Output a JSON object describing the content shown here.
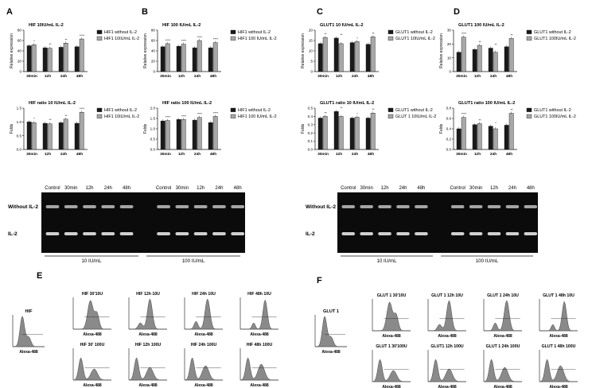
{
  "panel_labels": [
    "A",
    "B",
    "C",
    "D",
    "E",
    "F"
  ],
  "chart_data": [
    {
      "type": "bar",
      "title": "HIF 10IU/mL IL-2",
      "xlabel": "",
      "ylabel": "Relative expression",
      "categories": [
        "30min",
        "12h",
        "24h",
        "48h"
      ],
      "ylim": [
        0,
        80
      ],
      "yticks": [
        "0",
        "20",
        "40",
        "60",
        "80"
      ],
      "series": [
        {
          "name": "HIF1 without IL-2",
          "values": [
            50,
            46,
            47,
            48
          ]
        },
        {
          "name": "HIF1 10IU/mL IL-2",
          "values": [
            52,
            45,
            55,
            63
          ]
        }
      ],
      "annotations": [
        "*",
        "**",
        "**",
        "****"
      ],
      "legend": "right"
    },
    {
      "type": "bar",
      "title": "HIF 100 IU/mL IL-2",
      "xlabel": "",
      "ylabel": "Relative expression",
      "categories": [
        "30min",
        "12h",
        "24h",
        "48h"
      ],
      "ylim": [
        0,
        80
      ],
      "yticks": [
        "0",
        "20",
        "40",
        "60",
        "80"
      ],
      "series": [
        {
          "name": "HIF1 without IL-2",
          "values": [
            48,
            49,
            46,
            46
          ]
        },
        {
          "name": "HIF1 100 IU/mL IL-2",
          "values": [
            54,
            53,
            60,
            56
          ]
        }
      ],
      "annotations": [
        "****",
        "****",
        "****",
        "****"
      ],
      "legend": "right"
    },
    {
      "type": "bar",
      "title": "GLUT1 10 IU/mL IL-2",
      "xlabel": "",
      "ylabel": "Relative expression",
      "categories": [
        "30min",
        "12h",
        "24h",
        "48h"
      ],
      "ylim": [
        0,
        20
      ],
      "yticks": [
        "0",
        "5",
        "10",
        "15",
        "20"
      ],
      "series": [
        {
          "name": "GLUT1 without IL-2",
          "values": [
            13.5,
            16.2,
            14.0,
            13.2
          ]
        },
        {
          "name": "GLUT1 10IU/mL IL-2",
          "values": [
            16.5,
            13.5,
            14.5,
            16.8
          ]
        }
      ],
      "annotations": [
        "**",
        "**",
        "*",
        "**"
      ],
      "legend": "right"
    },
    {
      "type": "bar",
      "title": "GLUT1 100 IU/mL IL-2",
      "xlabel": "",
      "ylabel": "Relative expression",
      "categories": [
        "30min",
        "12h",
        "24h",
        "48h"
      ],
      "ylim": [
        0,
        30
      ],
      "yticks": [
        "0",
        "10",
        "20",
        "30"
      ],
      "series": [
        {
          "name": "GLUT1 without IL-2",
          "values": [
            14,
            16,
            17,
            18
          ]
        },
        {
          "name": "GLUT1 100IU/mL IL-2",
          "values": [
            25,
            19,
            14,
            24
          ]
        }
      ],
      "annotations": [
        "****",
        "**",
        "**",
        "**"
      ],
      "legend": "right"
    },
    {
      "type": "bar",
      "title": "HIF ratio 10 IU/mL IL-2",
      "xlabel": "",
      "ylabel": "Folds",
      "categories": [
        "30min",
        "12h",
        "24h",
        "48h"
      ],
      "ylim": [
        0,
        1.5
      ],
      "yticks": [
        "0.0",
        "0.5",
        "1.0",
        "1.5"
      ],
      "series": [
        {
          "name": "HIF1 without IL-2",
          "values": [
            1.0,
            0.95,
            0.97,
            0.95
          ]
        },
        {
          "name": "HIF1 10IU/mL IL-2",
          "values": [
            0.97,
            0.93,
            1.1,
            1.35
          ]
        }
      ],
      "annotations": [
        "*",
        "**",
        "**",
        "****"
      ],
      "legend": "right"
    },
    {
      "type": "bar",
      "title": "HIF ratio 100 IU/mL IL-2",
      "xlabel": "",
      "ylabel": "Folds",
      "categories": [
        "30min",
        "12h",
        "24h",
        "48h"
      ],
      "ylim": [
        0,
        2.0
      ],
      "yticks": [
        "0.0",
        "0.5",
        "1.0",
        "1.5",
        "2.0"
      ],
      "series": [
        {
          "name": "HIF1 without IL-2",
          "values": [
            1.38,
            1.45,
            1.42,
            1.3
          ]
        },
        {
          "name": "HIF1 100 IU/mL IL-2",
          "values": [
            1.4,
            1.45,
            1.55,
            1.6
          ]
        }
      ],
      "annotations": [
        "****",
        "****",
        "****",
        "****"
      ],
      "legend": "right"
    },
    {
      "type": "bar",
      "title": "GLUT1 ratio 10 IU/mL IL-2",
      "xlabel": "",
      "ylabel": "Folds",
      "categories": [
        "30min",
        "12h",
        "24h",
        "48h"
      ],
      "ylim": [
        0.0,
        0.5
      ],
      "yticks": [
        "0.0",
        "0.1",
        "0.2",
        "0.3",
        "0.4",
        "0.5"
      ],
      "series": [
        {
          "name": "GLUT1 without IL-2",
          "values": [
            0.38,
            0.46,
            0.38,
            0.38
          ]
        },
        {
          "name": "GLUT 1 10IU/mL IL-2",
          "values": [
            0.4,
            0.4,
            0.39,
            0.44
          ]
        }
      ],
      "annotations": [
        "**",
        "**",
        "*",
        "**"
      ],
      "legend": "right"
    },
    {
      "type": "bar",
      "title": "GLUT1 ratio 100 IU/mL IL-2",
      "xlabel": "",
      "ylabel": "Folds",
      "categories": [
        "30min",
        "12h",
        "24h",
        "48h"
      ],
      "ylim": [
        0.0,
        0.8
      ],
      "yticks": [
        "0.0",
        "0.2",
        "0.4",
        "0.6",
        "0.8"
      ],
      "series": [
        {
          "name": "GLUT1 without IL-2",
          "values": [
            0.4,
            0.48,
            0.45,
            0.47
          ]
        },
        {
          "name": "GLUT1 100IU/mL IL-2",
          "values": [
            0.62,
            0.5,
            0.4,
            0.7
          ]
        }
      ],
      "annotations": [
        "****",
        "**",
        "*",
        "**"
      ],
      "legend": "right"
    }
  ],
  "gels": [
    {
      "lanes": [
        "Control",
        "30min",
        "12h",
        "24h",
        "48h",
        "Control",
        "30min",
        "12h",
        "24h",
        "48h"
      ],
      "rows": [
        "Without IL-2",
        "IL-2"
      ],
      "groups": [
        "10 IU/mL",
        "100 IU/mL"
      ]
    },
    {
      "lanes": [
        "Control",
        "30min",
        "12h",
        "24h",
        "48h",
        "Control",
        "30min",
        "12h",
        "24h",
        "48h"
      ],
      "rows": [
        "Without IL-2",
        "IL-2"
      ],
      "groups": [
        "10 IU/mL",
        "100 IU/mL"
      ]
    }
  ],
  "flow": [
    {
      "main_title": "HIF",
      "axis_label": "Alexa-488",
      "titles_top": [
        "HIF 30'10U",
        "HIF 12h 10U",
        "HIF 24h 10U",
        "HIF 48h 10U"
      ],
      "titles_bottom": [
        "HIF 30' 100U",
        "HIF 12h 100U",
        "HIF 24h 100U",
        "HIF 48h 100U"
      ]
    },
    {
      "main_title": "GLUT 1",
      "axis_label": "Alexa-488",
      "titles_top": [
        "GLUT 1 30'10U",
        "GLUT 1 12h 10U",
        "GLUT 1 24h 10U",
        "GLUT 1 48h 10U"
      ],
      "titles_bottom": [
        "GLUT 1 30'100U",
        "GLUT1 12h 100U",
        "GLUT 1 24h 100U",
        "GLUT 1 48h 100U"
      ]
    }
  ],
  "colors": {
    "without": "#1a1a1a",
    "with": "#a8a8a8",
    "gel_bg": "#0b0b0b",
    "band": "#e6e6e6",
    "histogram": "#8a8a8a"
  }
}
